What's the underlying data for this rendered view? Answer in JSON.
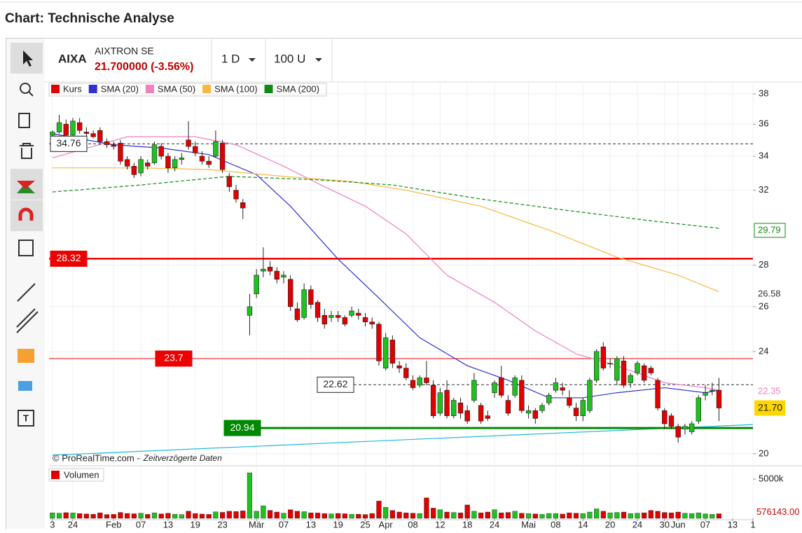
{
  "header": {
    "title": "Chart: Technische Analyse"
  },
  "toolbar": {
    "symbol": "AIXA",
    "name": "AIXTRON SE",
    "price": "21.700000 (-3.56%)",
    "interval": "1 D",
    "units": "100 U"
  },
  "chart_data": {
    "type": "candlestick",
    "legend": [
      {
        "name": "Kurs",
        "color": "#e00000"
      },
      {
        "name": "SMA (20)",
        "color": "#3030d0"
      },
      {
        "name": "SMA (50)",
        "color": "#f080c0"
      },
      {
        "name": "SMA (100)",
        "color": "#f8b840"
      },
      {
        "name": "SMA (200)",
        "color": "#108a10"
      }
    ],
    "log_scale": true,
    "grid": true,
    "xlim": [
      -0.5,
      103
    ],
    "ylim": [
      19.65,
      38.67
    ],
    "yticks": [
      20,
      24,
      26,
      28,
      32,
      34,
      36,
      38
    ],
    "xticks": [
      {
        "value": 0,
        "label": "3"
      },
      {
        "value": 3,
        "label": "24"
      },
      {
        "value": 9,
        "label": "Feb"
      },
      {
        "value": 13,
        "label": "07"
      },
      {
        "value": 17,
        "label": "13"
      },
      {
        "value": 21,
        "label": "19"
      },
      {
        "value": 25,
        "label": "23"
      },
      {
        "value": 30,
        "label": "Mär"
      },
      {
        "value": 34,
        "label": "07"
      },
      {
        "value": 38,
        "label": "13"
      },
      {
        "value": 42,
        "label": "19"
      },
      {
        "value": 46,
        "label": "25"
      },
      {
        "value": 49,
        "label": "Apr"
      },
      {
        "value": 53,
        "label": "08"
      },
      {
        "value": 57,
        "label": "12"
      },
      {
        "value": 61,
        "label": "18"
      },
      {
        "value": 65,
        "label": "24"
      },
      {
        "value": 70,
        "label": "Mai"
      },
      {
        "value": 74,
        "label": "08"
      },
      {
        "value": 78,
        "label": "14"
      },
      {
        "value": 82,
        "label": "20"
      },
      {
        "value": 86,
        "label": "24"
      },
      {
        "value": 90,
        "label": "30"
      },
      {
        "value": 92,
        "label": "Jun"
      },
      {
        "value": 96,
        "label": "07"
      },
      {
        "value": 100,
        "label": "13"
      },
      {
        "value": 103,
        "label": "1"
      }
    ],
    "candles": [
      [
        35.3,
        35.6,
        35.1,
        35.5
      ],
      [
        35.5,
        36.6,
        35.4,
        36.1
      ],
      [
        36.0,
        36.3,
        35.1,
        35.3
      ],
      [
        35.3,
        36.4,
        35.2,
        36.2
      ],
      [
        36.1,
        36.4,
        35.4,
        35.6
      ],
      [
        35.5,
        35.8,
        35.2,
        35.4
      ],
      [
        35.4,
        35.6,
        35.1,
        35.2
      ],
      [
        35.6,
        35.8,
        34.7,
        34.9
      ],
      [
        34.9,
        35.1,
        34.5,
        34.7
      ],
      [
        34.7,
        34.9,
        34.4,
        34.6
      ],
      [
        34.8,
        35.0,
        33.5,
        33.7
      ],
      [
        33.8,
        34.0,
        33.2,
        33.4
      ],
      [
        33.4,
        33.6,
        32.7,
        32.9
      ],
      [
        33.0,
        34.0,
        32.8,
        33.8
      ],
      [
        33.6,
        33.8,
        33.2,
        33.4
      ],
      [
        33.6,
        34.9,
        33.5,
        34.7
      ],
      [
        34.6,
        34.8,
        33.8,
        34.0
      ],
      [
        34.0,
        34.2,
        33.0,
        33.3
      ],
      [
        33.3,
        34.0,
        33.1,
        33.8
      ],
      [
        33.8,
        34.2,
        33.5,
        33.9
      ],
      [
        35.0,
        36.2,
        34.4,
        34.6
      ],
      [
        34.6,
        34.9,
        34.0,
        34.2
      ],
      [
        34.0,
        34.3,
        33.5,
        33.7
      ],
      [
        33.7,
        34.0,
        33.3,
        33.5
      ],
      [
        34.0,
        35.6,
        33.9,
        34.9
      ],
      [
        34.8,
        35.0,
        33.0,
        33.2
      ],
      [
        32.8,
        33.0,
        31.9,
        32.2
      ],
      [
        32.0,
        32.3,
        31.3,
        31.5
      ],
      [
        31.3,
        31.5,
        30.4,
        31.0
      ],
      [
        25.6,
        26.6,
        24.7,
        26.0
      ],
      [
        26.6,
        27.8,
        26.4,
        27.5
      ],
      [
        27.7,
        28.9,
        27.4,
        27.8
      ],
      [
        27.9,
        28.2,
        27.5,
        27.7
      ],
      [
        27.7,
        27.9,
        27.1,
        27.3
      ],
      [
        27.4,
        27.7,
        27.1,
        27.5
      ],
      [
        27.3,
        27.5,
        25.8,
        26.0
      ],
      [
        25.9,
        26.2,
        25.3,
        25.4
      ],
      [
        25.5,
        27.1,
        25.4,
        26.8
      ],
      [
        26.8,
        27.0,
        25.9,
        26.1
      ],
      [
        26.2,
        26.3,
        25.3,
        25.5
      ],
      [
        25.6,
        25.9,
        25.0,
        25.2
      ],
      [
        25.5,
        25.8,
        25.3,
        25.6
      ],
      [
        25.6,
        25.8,
        25.3,
        25.5
      ],
      [
        25.5,
        25.6,
        25.1,
        25.2
      ],
      [
        25.6,
        26.0,
        25.5,
        25.8
      ],
      [
        25.7,
        25.9,
        25.4,
        25.6
      ],
      [
        25.5,
        25.7,
        25.1,
        25.3
      ],
      [
        25.3,
        25.5,
        25.0,
        25.2
      ],
      [
        25.2,
        25.3,
        23.4,
        23.6
      ],
      [
        23.3,
        24.8,
        23.2,
        24.6
      ],
      [
        24.5,
        24.7,
        23.3,
        23.5
      ],
      [
        23.4,
        23.6,
        23.1,
        23.3
      ],
      [
        23.3,
        23.5,
        22.8,
        22.9
      ],
      [
        22.8,
        23.0,
        22.4,
        22.5
      ],
      [
        22.6,
        23.0,
        22.5,
        22.9
      ],
      [
        22.9,
        23.6,
        22.6,
        22.7
      ],
      [
        22.6,
        22.8,
        21.3,
        21.4
      ],
      [
        21.5,
        22.5,
        21.4,
        22.3
      ],
      [
        22.4,
        22.8,
        21.3,
        21.4
      ],
      [
        21.4,
        22.1,
        21.3,
        22.0
      ],
      [
        21.9,
        22.1,
        21.3,
        21.5
      ],
      [
        21.6,
        21.8,
        21.1,
        21.2
      ],
      [
        22.0,
        23.1,
        21.9,
        22.8
      ],
      [
        21.8,
        21.9,
        21.1,
        21.2
      ],
      [
        21.4,
        21.6,
        21.2,
        21.3
      ],
      [
        22.3,
        22.8,
        22.1,
        22.7
      ],
      [
        22.9,
        23.4,
        22.1,
        22.2
      ],
      [
        22.0,
        22.2,
        21.4,
        21.5
      ],
      [
        22.2,
        23.0,
        22.1,
        22.9
      ],
      [
        22.8,
        23.0,
        21.5,
        21.6
      ],
      [
        21.5,
        21.8,
        21.3,
        21.6
      ],
      [
        21.6,
        21.7,
        21.1,
        21.3
      ],
      [
        21.6,
        21.9,
        21.5,
        21.8
      ],
      [
        21.9,
        22.3,
        21.8,
        22.2
      ],
      [
        22.4,
        22.9,
        22.3,
        22.7
      ],
      [
        22.5,
        22.7,
        22.2,
        22.4
      ],
      [
        22.1,
        22.4,
        21.7,
        21.8
      ],
      [
        21.7,
        21.9,
        21.2,
        21.4
      ],
      [
        21.4,
        22.1,
        21.2,
        22.0
      ],
      [
        21.6,
        22.9,
        21.5,
        22.8
      ],
      [
        22.8,
        24.1,
        22.7,
        24.0
      ],
      [
        24.2,
        24.4,
        23.2,
        23.3
      ],
      [
        23.5,
        23.7,
        23.3,
        23.5
      ],
      [
        22.8,
        23.8,
        22.6,
        23.7
      ],
      [
        23.6,
        23.8,
        22.5,
        22.6
      ],
      [
        22.7,
        23.1,
        22.5,
        23.0
      ],
      [
        23.1,
        23.6,
        23.0,
        23.5
      ],
      [
        23.4,
        23.5,
        22.7,
        22.8
      ],
      [
        23.3,
        23.4,
        23.0,
        23.1
      ],
      [
        22.8,
        22.9,
        21.6,
        21.7
      ],
      [
        21.6,
        21.7,
        20.9,
        21.1
      ],
      [
        21.4,
        21.5,
        20.9,
        21.0
      ],
      [
        21.0,
        21.1,
        20.4,
        20.6
      ],
      [
        20.9,
        21.1,
        20.7,
        21.0
      ],
      [
        20.8,
        21.2,
        20.7,
        21.1
      ],
      [
        21.2,
        22.2,
        21.1,
        22.1
      ],
      [
        22.2,
        22.6,
        22.0,
        22.3
      ],
      [
        22.4,
        22.7,
        22.2,
        22.4
      ],
      [
        22.4,
        22.9,
        21.2,
        21.7
      ]
    ],
    "last_price": {
      "value": 21.7,
      "label": "21.70"
    },
    "series": [
      {
        "name": "SMA (20)",
        "color": "#3030d0",
        "x": [
          0,
          9,
          16,
          23,
          30,
          35,
          42,
          48,
          54,
          61,
          67,
          73,
          78,
          83,
          90,
          96,
          98
        ],
        "values": [
          35.4,
          34.7,
          34.5,
          34.1,
          32.9,
          31.1,
          28.3,
          26.4,
          24.6,
          23.4,
          22.8,
          22.1,
          22.1,
          22.3,
          22.5,
          22.3,
          22.4
        ]
      },
      {
        "name": "SMA (50)",
        "color": "#f080c0",
        "x": [
          0,
          11,
          21,
          27,
          34,
          40,
          46,
          52,
          58,
          65,
          71,
          77,
          83,
          90,
          96,
          98
        ],
        "values": [
          33.9,
          35.2,
          35.2,
          34.7,
          33.4,
          32.2,
          31.1,
          29.6,
          27.5,
          26.2,
          24.9,
          23.9,
          23.4,
          22.7,
          22.5,
          22.4
        ],
        "last": 22.35
      },
      {
        "name": "SMA (100)",
        "color": "#f8b840",
        "x": [
          0,
          13,
          23,
          34,
          44,
          52,
          63,
          73,
          83,
          92,
          98
        ],
        "values": [
          33.3,
          33.3,
          33.2,
          32.8,
          32.5,
          32.0,
          31.1,
          29.8,
          28.4,
          27.5,
          26.7
        ],
        "last": 26.58
      },
      {
        "name": "SMA (200)",
        "color": "#108a10",
        "dashed": true,
        "x": [
          0,
          13,
          26,
          39,
          50,
          63,
          75,
          88,
          98
        ],
        "values": [
          31.9,
          32.3,
          32.8,
          32.6,
          32.3,
          31.5,
          30.9,
          30.3,
          29.9
        ],
        "last": 29.79
      }
    ],
    "trendline": {
      "color": "#20b8e0",
      "x": [
        0,
        103
      ],
      "values": [
        19.95,
        21.07
      ]
    },
    "levels": [
      {
        "value": 34.76,
        "color": "#333333",
        "dashed": true
      },
      {
        "value": 28.32,
        "color": "#ee0000"
      },
      {
        "value": 23.7,
        "color": "#ee0000"
      },
      {
        "value": 22.62,
        "color": "#333333",
        "dashed": true
      },
      {
        "value": 20.94,
        "color": "#008800"
      }
    ],
    "copyright": "© ProRealTime.com -",
    "delay_note": "Zeitverzögerte Daten",
    "volume": {
      "title": "Volumen",
      "ylim": [
        0,
        6430000
      ],
      "yticks": [
        {
          "value": 5000000,
          "label": "5000k"
        }
      ],
      "last": {
        "value": 576143,
        "label": "576143.00"
      },
      "values": [
        700000,
        650000,
        720000,
        680000,
        600000,
        550000,
        520000,
        700000,
        480000,
        500000,
        750000,
        620000,
        580000,
        650000,
        500000,
        700000,
        560000,
        640000,
        520000,
        480000,
        900000,
        600000,
        540000,
        500000,
        820000,
        760000,
        900000,
        860000,
        950000,
        5800000,
        900000,
        1600000,
        1000000,
        800000,
        650000,
        1100000,
        900000,
        850000,
        700000,
        680000,
        600000,
        560000,
        620000,
        580000,
        500000,
        520000,
        480000,
        600000,
        2200000,
        1400000,
        1000000,
        800000,
        700000,
        650000,
        600000,
        2600000,
        1300000,
        1100000,
        800000,
        750000,
        700000,
        1700000,
        900000,
        700000,
        800000,
        1100000,
        700000,
        750000,
        900000,
        650000,
        600000,
        550000,
        500000,
        620000,
        600000,
        540000,
        700000,
        650000,
        600000,
        800000,
        1200000,
        900000,
        700000,
        750000,
        800000,
        600000,
        650000,
        700000,
        1000000,
        900000,
        750000,
        700000,
        800000,
        650000,
        600000,
        700000,
        550000,
        500000,
        576143
      ]
    }
  }
}
